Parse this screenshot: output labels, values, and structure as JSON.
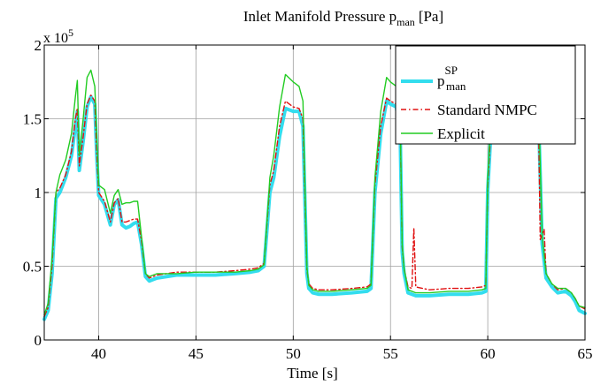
{
  "chart_data": {
    "type": "line",
    "title_main": "Inlet Manifold Pressure p",
    "title_sub": "man",
    "title_unit": "[Pa]",
    "xlabel": "Time [s]",
    "ylabel": "",
    "y_multiplier_base": "x 10",
    "y_multiplier_exp": "5",
    "xlim": [
      37.2,
      65
    ],
    "ylim": [
      0,
      2
    ],
    "xticks": [
      40,
      45,
      50,
      55,
      60,
      65
    ],
    "xtick_labels": [
      "40",
      "45",
      "50",
      "55",
      "60",
      "65"
    ],
    "yticks": [
      0,
      0.5,
      1,
      1.5,
      2
    ],
    "ytick_labels": [
      "0",
      "0.5",
      "1",
      "1.5",
      "2"
    ],
    "grid": true,
    "legend_position": "top-right",
    "legend": [
      {
        "label_main": "p",
        "label_sup": "SP",
        "label_sub": "man"
      },
      {
        "label": "Standard NMPC"
      },
      {
        "label": "Explicit"
      }
    ],
    "series": [
      {
        "name": "p_man^SP",
        "color": "#33ddee",
        "style": "solid",
        "x": [
          37.2,
          37.4,
          37.6,
          37.8,
          38.0,
          38.3,
          38.6,
          38.8,
          38.9,
          39.0,
          39.2,
          39.4,
          39.6,
          39.8,
          39.9,
          40.0,
          40.3,
          40.6,
          40.8,
          41.0,
          41.2,
          41.4,
          41.6,
          41.8,
          42.0,
          42.2,
          42.4,
          42.6,
          42.8,
          43.0,
          44.0,
          45.0,
          46.0,
          47.0,
          47.8,
          48.2,
          48.5,
          48.8,
          49.0,
          49.3,
          49.6,
          50.0,
          50.3,
          50.5,
          50.7,
          50.8,
          51.0,
          51.3,
          52.0,
          53.0,
          53.8,
          54.0,
          54.2,
          54.5,
          54.8,
          55.0,
          55.3,
          55.5,
          55.6,
          55.7,
          55.9,
          56.3,
          57.0,
          58.0,
          59.0,
          59.7,
          59.9,
          60.0,
          60.2,
          60.4,
          60.6,
          61.0,
          61.5,
          62.0,
          62.3,
          62.6,
          62.8,
          63.0,
          63.3,
          63.6,
          64.0,
          64.3,
          64.5,
          64.7,
          65.0
        ],
        "y": [
          0.14,
          0.2,
          0.45,
          0.96,
          1.0,
          1.1,
          1.25,
          1.45,
          1.55,
          1.15,
          1.35,
          1.58,
          1.65,
          1.6,
          1.25,
          0.98,
          0.92,
          0.78,
          0.92,
          0.95,
          0.78,
          0.76,
          0.77,
          0.79,
          0.8,
          0.65,
          0.43,
          0.4,
          0.41,
          0.42,
          0.44,
          0.44,
          0.44,
          0.45,
          0.46,
          0.47,
          0.5,
          1.0,
          1.1,
          1.38,
          1.57,
          1.55,
          1.55,
          1.45,
          0.45,
          0.35,
          0.32,
          0.31,
          0.31,
          0.32,
          0.33,
          0.35,
          1.0,
          1.4,
          1.62,
          1.6,
          1.58,
          1.4,
          0.6,
          0.45,
          0.32,
          0.3,
          0.3,
          0.31,
          0.31,
          0.32,
          0.33,
          1.02,
          1.5,
          1.65,
          1.6,
          1.58,
          1.57,
          1.58,
          1.6,
          1.55,
          0.65,
          0.42,
          0.36,
          0.32,
          0.33,
          0.3,
          0.26,
          0.2,
          0.18
        ]
      },
      {
        "name": "Standard NMPC",
        "color": "#e01010",
        "style": "dashdot",
        "x": [
          37.2,
          37.4,
          37.6,
          37.8,
          38.0,
          38.3,
          38.6,
          38.8,
          38.9,
          39.0,
          39.2,
          39.4,
          39.6,
          39.8,
          39.9,
          40.0,
          40.3,
          40.6,
          40.8,
          41.0,
          41.2,
          41.4,
          41.6,
          41.8,
          42.0,
          42.2,
          42.4,
          42.6,
          42.8,
          43.0,
          44.0,
          45.0,
          46.0,
          47.0,
          47.8,
          48.2,
          48.5,
          48.8,
          49.0,
          49.3,
          49.6,
          50.0,
          50.3,
          50.5,
          50.7,
          50.8,
          51.0,
          51.3,
          52.0,
          53.0,
          53.8,
          54.0,
          54.2,
          54.5,
          54.8,
          55.0,
          55.3,
          55.5,
          55.6,
          55.7,
          55.9,
          56.1,
          56.2,
          56.3,
          57.0,
          58.0,
          59.0,
          59.7,
          59.9,
          60.0,
          60.2,
          60.4,
          60.6,
          61.0,
          61.5,
          62.0,
          62.3,
          62.6,
          62.7,
          62.8,
          62.9,
          63.0,
          63.3,
          63.6,
          64.0,
          64.3,
          64.5,
          64.7,
          65.0
        ],
        "y": [
          0.16,
          0.22,
          0.5,
          1.0,
          1.03,
          1.12,
          1.28,
          1.5,
          1.57,
          1.18,
          1.38,
          1.6,
          1.66,
          1.62,
          1.27,
          1.0,
          0.94,
          0.8,
          0.93,
          0.96,
          0.8,
          0.8,
          0.81,
          0.82,
          0.82,
          0.67,
          0.45,
          0.42,
          0.43,
          0.44,
          0.46,
          0.46,
          0.46,
          0.47,
          0.48,
          0.49,
          0.52,
          1.05,
          1.15,
          1.45,
          1.62,
          1.58,
          1.57,
          1.5,
          0.48,
          0.38,
          0.35,
          0.34,
          0.34,
          0.35,
          0.36,
          0.38,
          1.05,
          1.45,
          1.64,
          1.62,
          1.6,
          1.45,
          0.63,
          0.48,
          0.36,
          0.35,
          0.76,
          0.36,
          0.34,
          0.35,
          0.35,
          0.36,
          0.37,
          1.05,
          1.52,
          1.66,
          1.62,
          1.6,
          1.59,
          1.6,
          1.62,
          1.57,
          0.68,
          0.72,
          0.75,
          0.45,
          0.38,
          0.34,
          0.35,
          0.32,
          0.28,
          0.23,
          0.21
        ]
      },
      {
        "name": "Explicit",
        "color": "#22cc22",
        "style": "solid",
        "x": [
          37.2,
          37.4,
          37.6,
          37.8,
          38.0,
          38.3,
          38.6,
          38.8,
          38.9,
          39.0,
          39.2,
          39.4,
          39.6,
          39.8,
          39.9,
          40.0,
          40.3,
          40.6,
          40.8,
          41.0,
          41.2,
          41.4,
          41.6,
          41.8,
          42.0,
          42.2,
          42.4,
          42.6,
          42.8,
          43.0,
          44.0,
          45.0,
          46.0,
          47.0,
          47.8,
          48.2,
          48.5,
          48.8,
          49.0,
          49.3,
          49.6,
          50.0,
          50.3,
          50.5,
          50.7,
          50.8,
          51.0,
          51.3,
          52.0,
          53.0,
          53.8,
          54.0,
          54.2,
          54.5,
          54.8,
          55.0,
          55.3,
          55.5,
          55.6,
          55.7,
          55.9,
          56.3,
          57.0,
          58.0,
          59.0,
          59.7,
          59.9,
          60.0,
          60.2,
          60.4,
          60.6,
          61.0,
          61.5,
          62.0,
          62.3,
          62.6,
          62.8,
          63.0,
          63.3,
          63.6,
          64.0,
          64.3,
          64.5,
          64.7,
          65.0
        ],
        "y": [
          0.17,
          0.25,
          0.55,
          1.0,
          1.12,
          1.22,
          1.4,
          1.65,
          1.76,
          1.25,
          1.5,
          1.78,
          1.83,
          1.72,
          1.4,
          1.05,
          1.02,
          0.86,
          0.98,
          1.02,
          0.92,
          0.93,
          0.93,
          0.94,
          0.94,
          0.7,
          0.45,
          0.43,
          0.44,
          0.45,
          0.45,
          0.46,
          0.46,
          0.46,
          0.47,
          0.48,
          0.51,
          1.1,
          1.25,
          1.58,
          1.8,
          1.75,
          1.72,
          1.62,
          0.5,
          0.37,
          0.34,
          0.33,
          0.33,
          0.34,
          0.35,
          0.37,
          1.1,
          1.55,
          1.78,
          1.75,
          1.72,
          1.5,
          0.65,
          0.48,
          0.34,
          0.32,
          0.32,
          0.33,
          0.33,
          0.34,
          0.35,
          1.1,
          1.6,
          1.8,
          1.75,
          1.72,
          1.7,
          1.72,
          1.74,
          1.66,
          0.7,
          0.45,
          0.38,
          0.35,
          0.35,
          0.32,
          0.28,
          0.23,
          0.22
        ]
      }
    ]
  }
}
